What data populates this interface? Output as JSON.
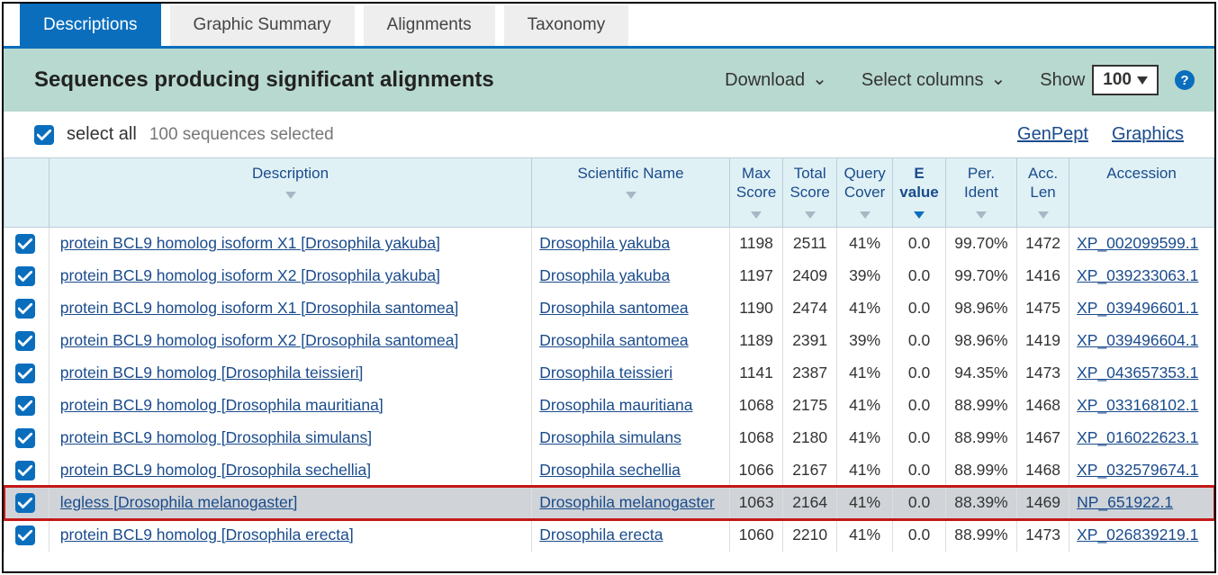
{
  "tabs": [
    {
      "label": "Descriptions",
      "active": true
    },
    {
      "label": "Graphic Summary",
      "active": false
    },
    {
      "label": "Alignments",
      "active": false
    },
    {
      "label": "Taxonomy",
      "active": false
    }
  ],
  "header": {
    "title": "Sequences producing significant alignments",
    "download_label": "Download",
    "select_columns_label": "Select columns",
    "show_label": "Show",
    "show_value": "100"
  },
  "select_bar": {
    "select_all_label": "select all",
    "count_text": "100 sequences selected",
    "genpept_label": "GenPept",
    "graphics_label": "Graphics"
  },
  "columns": [
    {
      "key": "desc",
      "label": "Description",
      "sort": "inactive"
    },
    {
      "key": "sci",
      "label": "Scientific Name",
      "sort": "inactive"
    },
    {
      "key": "max",
      "label": "Max\nScore",
      "sort": "inactive"
    },
    {
      "key": "tot",
      "label": "Total\nScore",
      "sort": "inactive"
    },
    {
      "key": "qc",
      "label": "Query\nCover",
      "sort": "inactive"
    },
    {
      "key": "ev",
      "label": "E\nvalue",
      "sort": "active",
      "bold": true
    },
    {
      "key": "pi",
      "label": "Per.\nIdent",
      "sort": "inactive"
    },
    {
      "key": "al",
      "label": "Acc.\nLen",
      "sort": "inactive"
    },
    {
      "key": "acc",
      "label": "Accession",
      "sort": null
    }
  ],
  "rows": [
    {
      "desc": "protein BCL9 homolog isoform X1 [Drosophila yakuba]",
      "sci": "Drosophila yakuba",
      "max": "1198",
      "tot": "2511",
      "qc": "41%",
      "ev": "0.0",
      "pi": "99.70%",
      "al": "1472",
      "acc": "XP_002099599.1",
      "highlight": false
    },
    {
      "desc": "protein BCL9 homolog isoform X2 [Drosophila yakuba]",
      "sci": "Drosophila yakuba",
      "max": "1197",
      "tot": "2409",
      "qc": "39%",
      "ev": "0.0",
      "pi": "99.70%",
      "al": "1416",
      "acc": "XP_039233063.1",
      "highlight": false
    },
    {
      "desc": "protein BCL9 homolog isoform X1 [Drosophila santomea]",
      "sci": "Drosophila santomea",
      "max": "1190",
      "tot": "2474",
      "qc": "41%",
      "ev": "0.0",
      "pi": "98.96%",
      "al": "1475",
      "acc": "XP_039496601.1",
      "highlight": false
    },
    {
      "desc": "protein BCL9 homolog isoform X2 [Drosophila santomea]",
      "sci": "Drosophila santomea",
      "max": "1189",
      "tot": "2391",
      "qc": "39%",
      "ev": "0.0",
      "pi": "98.96%",
      "al": "1419",
      "acc": "XP_039496604.1",
      "highlight": false
    },
    {
      "desc": "protein BCL9 homolog [Drosophila teissieri]",
      "sci": "Drosophila teissieri",
      "max": "1141",
      "tot": "2387",
      "qc": "41%",
      "ev": "0.0",
      "pi": "94.35%",
      "al": "1473",
      "acc": "XP_043657353.1",
      "highlight": false
    },
    {
      "desc": "protein BCL9 homolog [Drosophila mauritiana]",
      "sci": "Drosophila mauritiana",
      "max": "1068",
      "tot": "2175",
      "qc": "41%",
      "ev": "0.0",
      "pi": "88.99%",
      "al": "1468",
      "acc": "XP_033168102.1",
      "highlight": false
    },
    {
      "desc": "protein BCL9 homolog [Drosophila simulans]",
      "sci": "Drosophila simulans",
      "max": "1068",
      "tot": "2180",
      "qc": "41%",
      "ev": "0.0",
      "pi": "88.99%",
      "al": "1467",
      "acc": "XP_016022623.1",
      "highlight": false
    },
    {
      "desc": "protein BCL9 homolog [Drosophila sechellia]",
      "sci": "Drosophila sechellia",
      "max": "1066",
      "tot": "2167",
      "qc": "41%",
      "ev": "0.0",
      "pi": "88.99%",
      "al": "1468",
      "acc": "XP_032579674.1",
      "highlight": false
    },
    {
      "desc": "legless [Drosophila melanogaster]",
      "sci": "Drosophila melanogaster",
      "max": "1063",
      "tot": "2164",
      "qc": "41%",
      "ev": "0.0",
      "pi": "88.39%",
      "al": "1469",
      "acc": "NP_651922.1",
      "highlight": true
    },
    {
      "desc": "protein BCL9 homolog [Drosophila erecta]",
      "sci": "Drosophila erecta",
      "max": "1060",
      "tot": "2210",
      "qc": "41%",
      "ev": "0.0",
      "pi": "88.99%",
      "al": "1473",
      "acc": "XP_026839219.1",
      "highlight": false
    }
  ],
  "colors": {
    "primary": "#0a6ebd",
    "header_bg": "#b8d9cf",
    "thead_bg": "#e0f1f5",
    "link": "#1a4b8c",
    "highlight_outline": "#c41818",
    "highlight_bg": "#d0d4d8"
  }
}
